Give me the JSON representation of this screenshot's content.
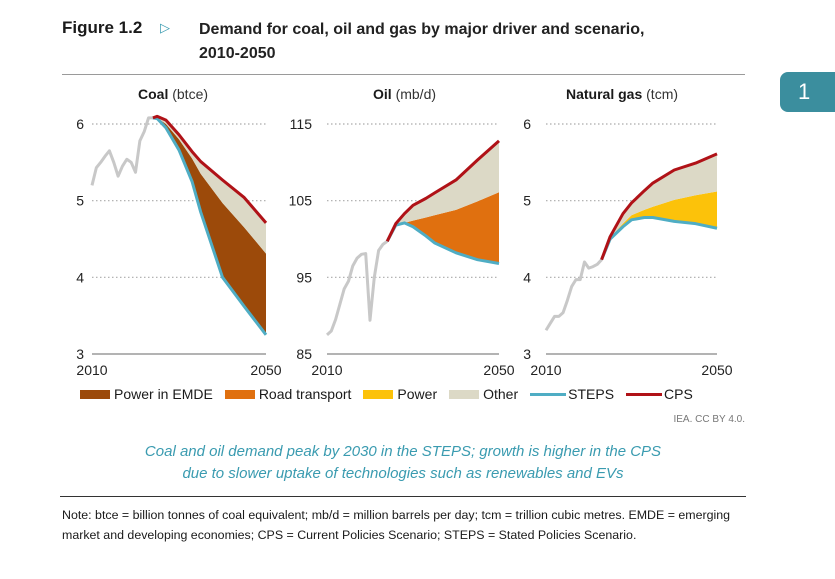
{
  "figure": {
    "label": "Figure 1.2",
    "title_line1": "Demand for coal, oil and gas by major driver and scenario,",
    "title_line2": "2010-2050",
    "chapter_tab": "1"
  },
  "legend": [
    {
      "label": "Power in EMDE",
      "color": "#9c4a0a",
      "kind": "area"
    },
    {
      "label": "Road transport",
      "color": "#e0700f",
      "kind": "area"
    },
    {
      "label": "Power",
      "color": "#fcc20a",
      "kind": "area"
    },
    {
      "label": "Other",
      "color": "#dcd9c6",
      "kind": "area"
    },
    {
      "label": "STEPS",
      "color": "#4fadc4",
      "kind": "line"
    },
    {
      "label": "CPS",
      "color": "#b01217",
      "kind": "line"
    }
  ],
  "colors": {
    "historical": "#c8c8c8",
    "accent": "#3a9bb0",
    "tab": "#3b8e9e"
  },
  "source": "IEA. CC BY 4.0.",
  "takeaway_line1": "Coal and oil demand peak by 2030 in the STEPS; growth is higher in the CPS",
  "takeaway_line2": "due to slower uptake of technologies such as renewables and EVs",
  "notes": "Note: btce = billion tonnes of coal equivalent; mb/d = million barrels per day; tcm = trillion cubic metres. EMDE = emerging market and developing economies; CPS = Current Policies Scenario; STEPS = Stated Policies Scenario.",
  "chart_data": [
    {
      "type": "area",
      "title_bold": "Coal",
      "title_unit": "(btce)",
      "ylim": [
        3,
        6
      ],
      "yticks": [
        "3",
        "4",
        "5",
        "6"
      ],
      "xlim": [
        2010,
        2050
      ],
      "xticks": [
        "2010",
        "2050"
      ],
      "grid": "dotted horizontal",
      "historical": {
        "x": [
          2010,
          2011,
          2012,
          2013,
          2014,
          2015,
          2016,
          2017,
          2018,
          2019,
          2020,
          2021,
          2022,
          2023,
          2024
        ],
        "y": [
          5.2,
          5.43,
          5.5,
          5.58,
          5.65,
          5.5,
          5.32,
          5.45,
          5.54,
          5.5,
          5.37,
          5.78,
          5.9,
          6.08,
          6.08
        ]
      },
      "projection_x": [
        2024,
        2025,
        2027,
        2030,
        2033,
        2035,
        2040,
        2045,
        2050
      ],
      "STEPS": [
        6.08,
        6.07,
        5.95,
        5.66,
        5.25,
        4.85,
        4.0,
        3.62,
        3.25
      ],
      "CPS": [
        6.08,
        6.1,
        6.05,
        5.86,
        5.64,
        5.51,
        5.27,
        5.04,
        4.71
      ],
      "driver": "Power in EMDE",
      "driver_top": [
        6.08,
        6.08,
        6.0,
        5.8,
        5.55,
        5.35,
        4.97,
        4.65,
        4.31
      ]
    },
    {
      "type": "area",
      "title_bold": "Oil",
      "title_unit": "(mb/d)",
      "ylim": [
        85,
        115
      ],
      "yticks": [
        "85",
        "95",
        "105",
        "115"
      ],
      "xlim": [
        2010,
        2050
      ],
      "xticks": [
        "2010",
        "2050"
      ],
      "grid": "dotted horizontal",
      "historical": {
        "x": [
          2010,
          2011,
          2012,
          2013,
          2014,
          2015,
          2016,
          2017,
          2018,
          2019,
          2020,
          2021,
          2022,
          2023,
          2024
        ],
        "y": [
          87.5,
          88,
          89.5,
          91.5,
          93.5,
          94.5,
          96.5,
          97.5,
          98,
          98.1,
          89.4,
          95,
          98.5,
          99.3,
          99.7
        ]
      },
      "projection_x": [
        2024,
        2026,
        2028,
        2030,
        2033,
        2035,
        2040,
        2045,
        2050
      ],
      "STEPS": [
        99.7,
        101.8,
        102.1,
        101.6,
        100.4,
        99.5,
        98.2,
        97.3,
        96.8
      ],
      "CPS": [
        99.7,
        102,
        103.3,
        104.4,
        105.3,
        106,
        107.7,
        110.3,
        112.8
      ],
      "driver": "Road transport",
      "driver_top": [
        99.7,
        101.9,
        102.1,
        102.4,
        102.8,
        103.1,
        103.8,
        104.9,
        106.1
      ]
    },
    {
      "type": "area",
      "title_bold": "Natural gas",
      "title_unit": "(tcm)",
      "ylim": [
        3,
        6
      ],
      "yticks": [
        "3",
        "4",
        "5",
        "6"
      ],
      "xlim": [
        2010,
        2050
      ],
      "xticks": [
        "2010",
        "2050"
      ],
      "grid": "dotted horizontal",
      "historical": {
        "x": [
          2010,
          2011,
          2012,
          2013,
          2014,
          2015,
          2016,
          2017,
          2018,
          2019,
          2020,
          2021,
          2022,
          2023
        ],
        "y": [
          3.31,
          3.4,
          3.49,
          3.49,
          3.54,
          3.7,
          3.88,
          3.97,
          3.97,
          4.2,
          4.12,
          4.14,
          4.17,
          4.23
        ]
      },
      "projection_x": [
        2023,
        2025,
        2028,
        2030,
        2033,
        2035,
        2040,
        2045,
        2050
      ],
      "STEPS": [
        4.23,
        4.5,
        4.66,
        4.75,
        4.78,
        4.78,
        4.73,
        4.7,
        4.64
      ],
      "CPS": [
        4.23,
        4.53,
        4.83,
        4.97,
        5.13,
        5.23,
        5.4,
        5.49,
        5.61
      ],
      "driver": "Power",
      "driver_top": [
        4.23,
        4.52,
        4.7,
        4.81,
        4.88,
        4.92,
        5.01,
        5.07,
        5.12
      ]
    }
  ]
}
